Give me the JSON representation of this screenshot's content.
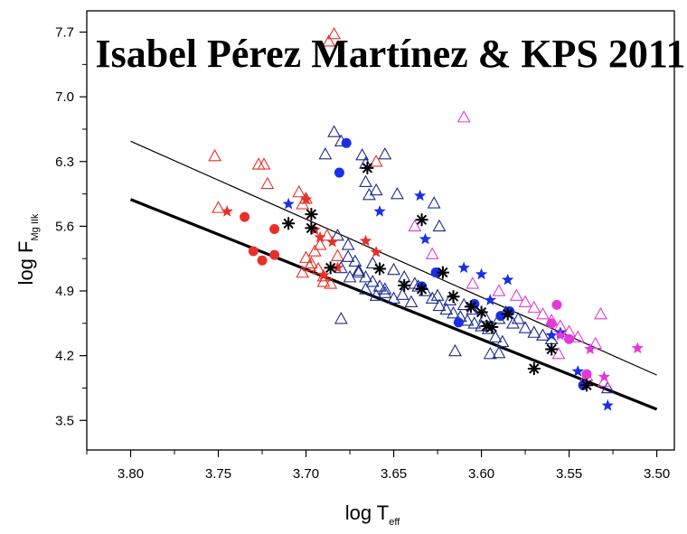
{
  "chart_data": {
    "type": "scatter",
    "title": "",
    "annotation": "Isabel Pérez Martínez & KPS 2011",
    "xlabel": {
      "main": "log T",
      "sub": "eff"
    },
    "ylabel": {
      "main": "log F",
      "sub": "Mg IIk"
    },
    "xlim": [
      3.825,
      3.49
    ],
    "ylim": [
      3.18,
      7.93
    ],
    "x_ticks": [
      3.8,
      3.75,
      3.7,
      3.65,
      3.6,
      3.55,
      3.5
    ],
    "x_tick_labels": [
      "3.80",
      "3.75",
      "3.70",
      "3.65",
      "3.60",
      "3.55",
      "3.50"
    ],
    "y_ticks": [
      3.5,
      4.2,
      4.9,
      5.6,
      6.3,
      7.0,
      7.7
    ],
    "y_tick_labels": [
      "3.5",
      "4.2",
      "4.9",
      "5.6",
      "6.3",
      "7.0",
      "7.7"
    ],
    "grid": false,
    "colors": {
      "red": "#e8302a",
      "navy": "#1c2a8c",
      "blue": "#1a2ee8",
      "magenta": "#e23ad8",
      "black": "#000000"
    },
    "lines": [
      {
        "x": [
          3.8,
          3.5
        ],
        "y": [
          6.52,
          3.99
        ],
        "width": 1.2
      },
      {
        "x": [
          3.8,
          3.5
        ],
        "y": [
          5.89,
          3.62
        ],
        "width": 3.2
      }
    ],
    "series": [
      {
        "marker": "triangle",
        "color": "red",
        "points": [
          [
            3.752,
            6.36
          ],
          [
            3.727,
            6.27
          ],
          [
            3.724,
            6.27
          ],
          [
            3.722,
            6.06
          ],
          [
            3.704,
            5.97
          ],
          [
            3.7,
            5.9
          ],
          [
            3.702,
            5.84
          ],
          [
            3.688,
            5.5
          ],
          [
            3.692,
            5.4
          ],
          [
            3.695,
            5.33
          ],
          [
            3.7,
            5.26
          ],
          [
            3.697,
            5.2
          ],
          [
            3.693,
            5.14
          ],
          [
            3.69,
            5.06
          ],
          [
            3.686,
            4.98
          ],
          [
            3.702,
            5.1
          ],
          [
            3.698,
            5.17
          ],
          [
            3.682,
            5.28
          ],
          [
            3.75,
            5.8
          ],
          [
            3.69,
            5.0
          ],
          [
            3.66,
            6.3
          ],
          [
            3.684,
            7.68
          ],
          [
            3.687,
            7.6
          ]
        ]
      },
      {
        "marker": "triangle",
        "color": "navy",
        "points": [
          [
            3.684,
            6.62
          ],
          [
            3.68,
            6.52
          ],
          [
            3.689,
            6.38
          ],
          [
            3.668,
            6.37
          ],
          [
            3.655,
            6.38
          ],
          [
            3.666,
            6.28
          ],
          [
            3.666,
            6.08
          ],
          [
            3.66,
            5.99
          ],
          [
            3.664,
            5.94
          ],
          [
            3.648,
            5.95
          ],
          [
            3.627,
            5.85
          ],
          [
            3.624,
            5.6
          ],
          [
            3.682,
            5.5
          ],
          [
            3.676,
            5.4
          ],
          [
            3.676,
            5.27
          ],
          [
            3.672,
            5.22
          ],
          [
            3.68,
            5.15
          ],
          [
            3.67,
            5.1
          ],
          [
            3.666,
            5.05
          ],
          [
            3.662,
            5.0
          ],
          [
            3.658,
            4.95
          ],
          [
            3.655,
            4.88
          ],
          [
            3.65,
            4.82
          ],
          [
            3.645,
            4.86
          ],
          [
            3.64,
            4.78
          ],
          [
            3.636,
            4.95
          ],
          [
            3.632,
            4.9
          ],
          [
            3.628,
            4.82
          ],
          [
            3.624,
            4.74
          ],
          [
            3.62,
            4.7
          ],
          [
            3.616,
            4.66
          ],
          [
            3.612,
            4.62
          ],
          [
            3.608,
            4.58
          ],
          [
            3.604,
            4.55
          ],
          [
            3.6,
            4.52
          ],
          [
            3.596,
            4.49
          ],
          [
            3.592,
            4.4
          ],
          [
            3.588,
            4.35
          ],
          [
            3.595,
            4.22
          ],
          [
            3.59,
            4.23
          ],
          [
            3.615,
            4.25
          ],
          [
            3.579,
            4.6
          ],
          [
            3.586,
            4.67
          ],
          [
            3.666,
            4.92
          ],
          [
            3.66,
            4.85
          ],
          [
            3.65,
            5.13
          ],
          [
            3.644,
            5.05
          ],
          [
            3.638,
            4.98
          ],
          [
            3.68,
            4.6
          ],
          [
            3.675,
            5.05
          ],
          [
            3.67,
            5.12
          ],
          [
            3.662,
            5.2
          ],
          [
            3.655,
            4.92
          ],
          [
            3.625,
            4.85
          ],
          [
            3.618,
            4.8
          ],
          [
            3.61,
            4.75
          ],
          [
            3.605,
            4.7
          ],
          [
            3.598,
            4.62
          ],
          [
            3.59,
            4.6
          ],
          [
            3.582,
            4.55
          ],
          [
            3.575,
            4.5
          ],
          [
            3.57,
            4.45
          ],
          [
            3.565,
            4.42
          ],
          [
            3.56,
            4.38
          ],
          [
            3.528,
            3.85
          ]
        ]
      },
      {
        "marker": "triangle",
        "color": "magenta",
        "points": [
          [
            3.61,
            6.78
          ],
          [
            3.638,
            5.6
          ],
          [
            3.628,
            5.3
          ],
          [
            3.605,
            4.98
          ],
          [
            3.59,
            4.9
          ],
          [
            3.58,
            4.85
          ],
          [
            3.575,
            4.78
          ],
          [
            3.57,
            4.72
          ],
          [
            3.565,
            4.65
          ],
          [
            3.56,
            4.58
          ],
          [
            3.555,
            4.52
          ],
          [
            3.55,
            4.46
          ],
          [
            3.545,
            4.4
          ],
          [
            3.535,
            4.33
          ],
          [
            3.532,
            4.65
          ],
          [
            3.556,
            4.22
          ],
          [
            3.54,
            3.98
          ],
          [
            3.53,
            3.92
          ]
        ]
      },
      {
        "marker": "star",
        "color": "red",
        "points": [
          [
            3.745,
            5.76
          ],
          [
            3.7,
            5.89
          ],
          [
            3.695,
            5.56
          ],
          [
            3.692,
            5.48
          ],
          [
            3.685,
            5.43
          ],
          [
            3.666,
            5.44
          ],
          [
            3.66,
            5.32
          ],
          [
            3.682,
            5.15
          ],
          [
            3.69,
            5.07
          ]
        ]
      },
      {
        "marker": "star",
        "color": "blue",
        "points": [
          [
            3.71,
            5.84
          ],
          [
            3.658,
            5.76
          ],
          [
            3.635,
            5.93
          ],
          [
            3.632,
            5.46
          ],
          [
            3.61,
            5.15
          ],
          [
            3.6,
            5.08
          ],
          [
            3.585,
            5.02
          ],
          [
            3.595,
            4.8
          ],
          [
            3.56,
            4.42
          ],
          [
            3.555,
            4.45
          ],
          [
            3.545,
            4.03
          ],
          [
            3.528,
            3.66
          ]
        ]
      },
      {
        "marker": "star",
        "color": "magenta",
        "points": [
          [
            3.555,
            4.42
          ],
          [
            3.538,
            4.27
          ],
          [
            3.511,
            4.28
          ],
          [
            3.53,
            3.97
          ]
        ]
      },
      {
        "marker": "circle",
        "color": "red",
        "points": [
          [
            3.735,
            5.7
          ],
          [
            3.718,
            5.57
          ],
          [
            3.73,
            5.33
          ],
          [
            3.718,
            5.29
          ],
          [
            3.725,
            5.23
          ]
        ]
      },
      {
        "marker": "circle",
        "color": "blue",
        "points": [
          [
            3.677,
            6.5
          ],
          [
            3.681,
            6.18
          ],
          [
            3.634,
            4.95
          ],
          [
            3.626,
            5.1
          ],
          [
            3.613,
            4.56
          ],
          [
            3.604,
            4.76
          ],
          [
            3.589,
            4.63
          ],
          [
            3.584,
            4.68
          ],
          [
            3.542,
            3.88
          ]
        ]
      },
      {
        "marker": "circle",
        "color": "magenta",
        "points": [
          [
            3.557,
            4.75
          ],
          [
            3.56,
            4.55
          ],
          [
            3.55,
            4.38
          ],
          [
            3.54,
            4.0
          ]
        ]
      },
      {
        "marker": "asterisk",
        "color": "black",
        "points": [
          [
            3.665,
            6.23
          ],
          [
            3.697,
            5.73
          ],
          [
            3.697,
            5.58
          ],
          [
            3.71,
            5.63
          ],
          [
            3.634,
            5.67
          ],
          [
            3.686,
            5.15
          ],
          [
            3.658,
            5.14
          ],
          [
            3.622,
            5.1
          ],
          [
            3.644,
            4.96
          ],
          [
            3.634,
            4.92
          ],
          [
            3.616,
            4.84
          ],
          [
            3.606,
            4.73
          ],
          [
            3.597,
            4.52
          ],
          [
            3.594,
            4.51
          ],
          [
            3.585,
            4.65
          ],
          [
            3.6,
            4.67
          ],
          [
            3.56,
            4.27
          ],
          [
            3.57,
            4.06
          ],
          [
            3.54,
            3.88
          ]
        ]
      }
    ]
  }
}
